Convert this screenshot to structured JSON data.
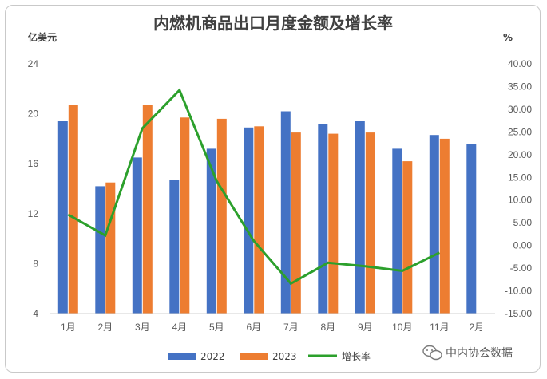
{
  "chart_data": {
    "type": "bar",
    "title": "内燃机商品出口月度金额及增长率",
    "y_left_unit": "亿美元",
    "y_right_unit": "%",
    "categories": [
      "1月",
      "2月",
      "3月",
      "4月",
      "5月",
      "6月",
      "7月",
      "8月",
      "9月",
      "10月",
      "11月",
      "2月"
    ],
    "series": [
      {
        "name": "2022",
        "type": "bar",
        "axis": "left",
        "color": "#4472c4",
        "values": [
          19.4,
          14.2,
          16.5,
          14.7,
          17.2,
          18.9,
          20.2,
          19.2,
          19.4,
          17.2,
          18.3,
          17.6
        ]
      },
      {
        "name": "2023",
        "type": "bar",
        "axis": "left",
        "color": "#ed7d31",
        "values": [
          20.7,
          14.5,
          20.7,
          19.7,
          19.6,
          19.0,
          18.5,
          18.4,
          18.5,
          16.2,
          18.0,
          null
        ]
      },
      {
        "name": "增长率",
        "type": "line",
        "axis": "right",
        "color": "#2ca02c",
        "values": [
          6.8,
          2.2,
          25.8,
          34.2,
          14.2,
          1.0,
          -8.4,
          -3.8,
          -4.6,
          -5.6,
          -1.6,
          null
        ]
      }
    ],
    "y_left": {
      "min": 4,
      "max": 24,
      "ticks": [
        "4",
        "8",
        "12",
        "16",
        "20",
        "24"
      ]
    },
    "y_right": {
      "min": -15,
      "max": 40,
      "ticks": [
        "-15.00",
        "-10.00",
        "-5.00",
        "0.00",
        "5.00",
        "10.00",
        "15.00",
        "20.00",
        "25.00",
        "30.00",
        "35.00",
        "40.00"
      ]
    },
    "grid": false,
    "legend_position": "bottom"
  },
  "watermark": {
    "text": "中内协会数据"
  }
}
